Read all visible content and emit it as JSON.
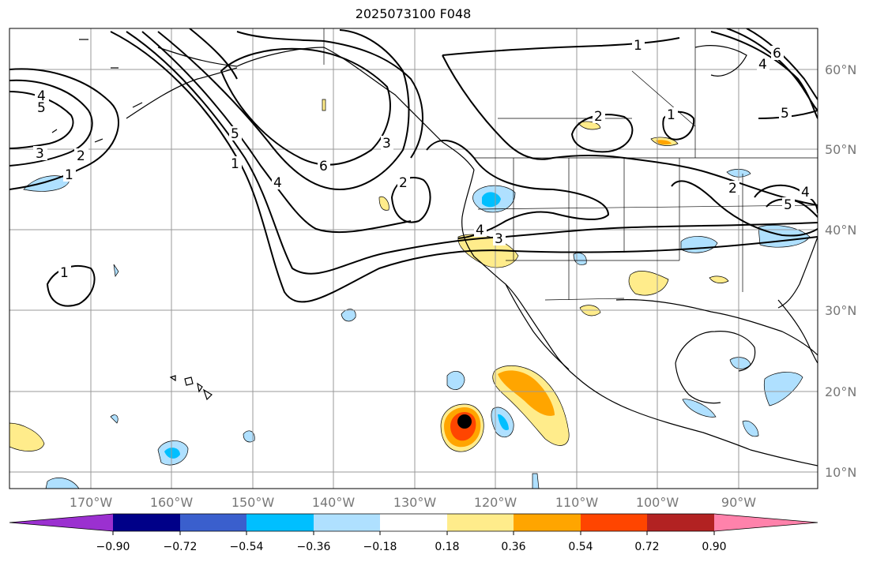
{
  "title": "2025073100 F048",
  "latitude_labels": [
    "60°N",
    "50°N",
    "40°N",
    "30°N",
    "20°N",
    "10°N"
  ],
  "longitude_labels": [
    "170°W",
    "160°W",
    "150°W",
    "140°W",
    "130°W",
    "120°W",
    "110°W",
    "100°W",
    "90°W"
  ],
  "contour_labels": [
    "1",
    "2",
    "3",
    "4",
    "5",
    "6"
  ],
  "colorbar": {
    "tick_labels": [
      "−0.90",
      "−0.72",
      "−0.54",
      "−0.36",
      "−0.18",
      "0.18",
      "0.36",
      "0.54",
      "0.72",
      "0.90"
    ],
    "colors": [
      "#9b30d0",
      "#000088",
      "#3a5fcd",
      "#00bfff",
      "#afe0ff",
      "#ffffff",
      "#ffec8b",
      "#ffa500",
      "#ff4500",
      "#b22222",
      "#ff82ab"
    ]
  },
  "storm_marker_color": "#000000"
}
